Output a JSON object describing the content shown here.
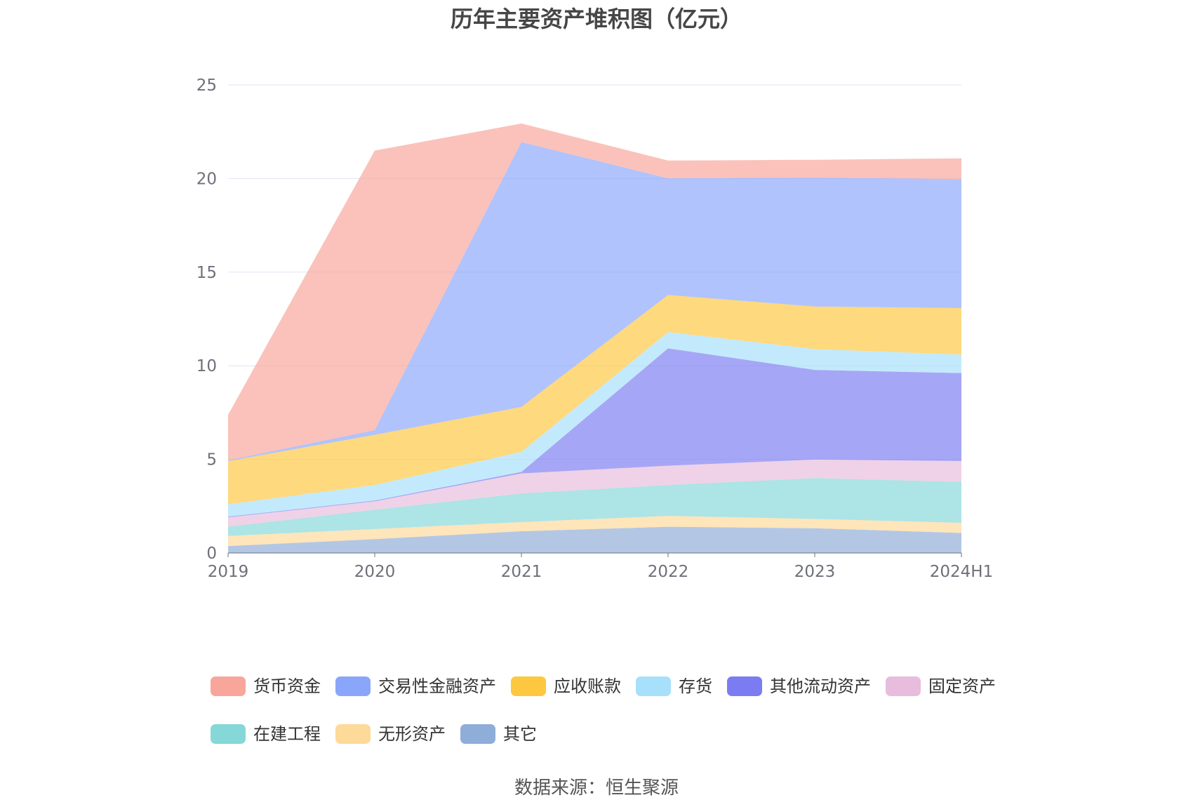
{
  "chart_data": {
    "type": "area",
    "stacked": true,
    "title": "历年主要资产堆积图（亿元）",
    "categories": [
      "2019",
      "2020",
      "2021",
      "2022",
      "2023",
      "2024H1"
    ],
    "ylim": [
      0,
      25
    ],
    "yticks": [
      0,
      5,
      10,
      15,
      20,
      25
    ],
    "grid": true,
    "legend_position": "bottom",
    "series": [
      {
        "name": "货币资金",
        "color": "#f8a59b",
        "values": [
          2.43,
          14.93,
          0.99,
          0.95,
          0.95,
          1.11
        ]
      },
      {
        "name": "交易性金融资产",
        "color": "#8aa6fb",
        "values": [
          0.04,
          0.25,
          14.15,
          6.23,
          6.89,
          6.89
        ]
      },
      {
        "name": "应收账款",
        "color": "#fdc73f",
        "values": [
          2.31,
          2.68,
          2.4,
          1.98,
          2.27,
          2.48
        ]
      },
      {
        "name": "存货",
        "color": "#a7e0fa",
        "values": [
          0.66,
          0.83,
          1.07,
          0.87,
          1.11,
          0.99
        ]
      },
      {
        "name": "其他流动资产",
        "color": "#7c7cf2",
        "values": [
          0.04,
          0.04,
          0.08,
          6.27,
          4.79,
          4.7
        ]
      },
      {
        "name": "固定资产",
        "color": "#e8bcdc",
        "values": [
          0.5,
          0.45,
          1.07,
          1.03,
          0.99,
          1.11
        ]
      },
      {
        "name": "在建工程",
        "color": "#86d7d8",
        "values": [
          0.49,
          1.03,
          1.53,
          1.65,
          2.18,
          2.19
        ]
      },
      {
        "name": "无形资产",
        "color": "#fdd99a",
        "values": [
          0.54,
          0.54,
          0.49,
          0.58,
          0.5,
          0.54
        ]
      },
      {
        "name": "其它",
        "color": "#8fadd9",
        "values": [
          0.37,
          0.74,
          1.16,
          1.4,
          1.32,
          1.07
        ]
      }
    ]
  },
  "source": "数据来源：恒生聚源"
}
